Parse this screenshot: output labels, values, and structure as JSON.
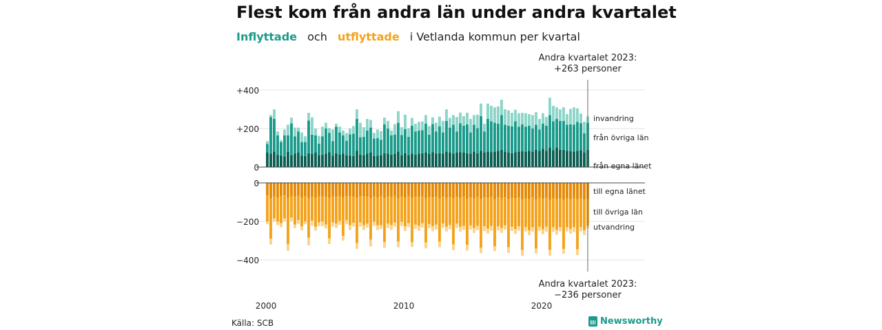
{
  "title": "Flest kom från andra län under andra kvartalet",
  "subtitle": {
    "in": "Inflyttade",
    "mid": "och",
    "out": "utflyttade",
    "rest": "i Vetlanda kommun per kvartal"
  },
  "source": "Källa: SCB",
  "logo": "Newsworthy",
  "colors": {
    "in_own": "#0b5e52",
    "in_other": "#1a9a8a",
    "in_immig": "#8dd5c9",
    "out_own": "#e58a07",
    "out_other": "#f4a21a",
    "out_emig": "#fbd38a"
  },
  "annotations": {
    "top_line1": "Andra kvartalet 2023:",
    "top_line2": "+263 personer",
    "bottom_line1": "Andra kvartalet 2023:",
    "bottom_line2": "−236 personer"
  },
  "chart_data": {
    "type": "bar",
    "x_tick_labels": [
      "2000",
      "2010",
      "2020"
    ],
    "y_tick_labels_top": [
      "+400",
      "+200",
      "0"
    ],
    "y_tick_labels_bottom": [
      "0",
      "−200",
      "−400"
    ],
    "ylim_top": [
      0,
      440
    ],
    "ylim_bottom": [
      -460,
      0
    ],
    "stacked": true,
    "series_labels_in": [
      "invandring",
      "från övriga län",
      "från egna länet"
    ],
    "series_labels_out": [
      "till egna länet",
      "till övriga län",
      "utvandring"
    ],
    "start_year": 2000,
    "end": "2023 Q2",
    "inflow": {
      "own": [
        75,
        70,
        80,
        65,
        60,
        55,
        80,
        62,
        70,
        75,
        60,
        58,
        72,
        68,
        75,
        62,
        65,
        70,
        78,
        60,
        72,
        65,
        70,
        62,
        60,
        58,
        85,
        65,
        62,
        70,
        75,
        58,
        60,
        62,
        72,
        70,
        65,
        68,
        80,
        62,
        72,
        62,
        70,
        65,
        70,
        72,
        75,
        68,
        78,
        70,
        72,
        70,
        80,
        75,
        70,
        75,
        78,
        75,
        72,
        70,
        80,
        72,
        85,
        75,
        80,
        78,
        80,
        85,
        90,
        80,
        75,
        72,
        78,
        80,
        82,
        80,
        85,
        80,
        90,
        85,
        95,
        85,
        100,
        88,
        100,
        90,
        90,
        85,
        82,
        80,
        85,
        88,
        75,
        90
      ],
      "other": [
        45,
        190,
        170,
        100,
        70,
        110,
        85,
        165,
        90,
        110,
        70,
        72,
        170,
        100,
        90,
        60,
        95,
        130,
        100,
        75,
        138,
        115,
        95,
        75,
        110,
        115,
        165,
        90,
        95,
        120,
        130,
        90,
        90,
        80,
        150,
        130,
        100,
        100,
        150,
        105,
        125,
        95,
        145,
        120,
        120,
        120,
        150,
        100,
        145,
        115,
        140,
        110,
        160,
        130,
        150,
        110,
        150,
        140,
        150,
        110,
        140,
        130,
        180,
        110,
        170,
        160,
        150,
        140,
        180,
        140,
        140,
        140,
        160,
        130,
        140,
        130,
        130,
        120,
        130,
        110,
        130,
        130,
        170,
        150,
        150,
        150,
        150,
        135,
        140,
        140,
        150,
        140,
        100,
        140
      ],
      "immig": [
        15,
        10,
        50,
        20,
        10,
        30,
        55,
        30,
        45,
        20,
        50,
        30,
        40,
        90,
        35,
        40,
        50,
        30,
        25,
        60,
        15,
        30,
        25,
        40,
        30,
        40,
        50,
        75,
        50,
        60,
        40,
        30,
        45,
        45,
        35,
        40,
        25,
        55,
        60,
        40,
        75,
        45,
        40,
        40,
        45,
        45,
        45,
        45,
        35,
        45,
        50,
        60,
        60,
        50,
        50,
        75,
        55,
        50,
        60,
        70,
        50,
        70,
        65,
        40,
        80,
        80,
        80,
        90,
        80,
        80,
        80,
        70,
        60,
        70,
        60,
        70,
        60,
        70,
        65,
        55,
        55,
        45,
        90,
        80,
        60,
        60,
        70,
        55,
        80,
        90,
        70,
        50,
        60,
        33
      ]
    },
    "outflow": {
      "own": [
        65,
        80,
        70,
        75,
        70,
        65,
        78,
        70,
        72,
        68,
        75,
        70,
        80,
        72,
        78,
        70,
        70,
        72,
        78,
        70,
        72,
        68,
        75,
        70,
        70,
        72,
        78,
        70,
        70,
        72,
        80,
        72,
        75,
        70,
        78,
        72,
        74,
        70,
        80,
        72,
        75,
        70,
        78,
        72,
        74,
        70,
        80,
        74,
        76,
        72,
        80,
        72,
        78,
        74,
        80,
        72,
        78,
        74,
        82,
        76,
        80,
        74,
        82,
        76,
        78,
        74,
        84,
        76,
        80,
        76,
        84,
        78,
        80,
        76,
        84,
        80,
        82,
        76,
        86,
        78,
        82,
        78,
        88,
        80,
        84,
        80,
        88,
        80,
        84,
        80,
        85,
        80,
        86,
        82
      ],
      "other": [
        135,
        210,
        115,
        125,
        140,
        120,
        240,
        110,
        145,
        125,
        150,
        130,
        205,
        125,
        150,
        135,
        130,
        145,
        210,
        135,
        140,
        130,
        200,
        125,
        150,
        135,
        235,
        135,
        150,
        140,
        215,
        130,
        145,
        150,
        230,
        140,
        145,
        135,
        225,
        130,
        150,
        140,
        230,
        145,
        150,
        140,
        230,
        140,
        150,
        145,
        225,
        140,
        150,
        145,
        240,
        140,
        150,
        150,
        240,
        145,
        155,
        150,
        255,
        150,
        160,
        150,
        245,
        150,
        155,
        145,
        250,
        150,
        160,
        150,
        265,
        150,
        165,
        155,
        255,
        150,
        160,
        150,
        260,
        150,
        160,
        150,
        255,
        150,
        155,
        150,
        260,
        150,
        160,
        140
      ],
      "emig": [
        15,
        30,
        15,
        20,
        20,
        15,
        35,
        20,
        18,
        20,
        22,
        15,
        40,
        25,
        20,
        20,
        25,
        20,
        30,
        22,
        22,
        20,
        25,
        20,
        25,
        20,
        30,
        22,
        25,
        20,
        35,
        22,
        25,
        20,
        30,
        22,
        25,
        22,
        30,
        22,
        25,
        20,
        25,
        22,
        25,
        22,
        30,
        22,
        25,
        25,
        30,
        22,
        25,
        22,
        30,
        22,
        25,
        20,
        30,
        22,
        25,
        22,
        28,
        25,
        25,
        25,
        25,
        22,
        25,
        22,
        30,
        22,
        25,
        22,
        30,
        22,
        25,
        22,
        25,
        22,
        25,
        25,
        30,
        25,
        25,
        22,
        25,
        22,
        25,
        25,
        30,
        22,
        25,
        14
      ]
    }
  }
}
